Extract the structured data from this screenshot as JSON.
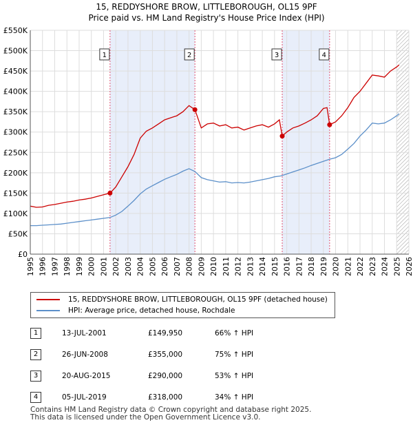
{
  "title_line1": "15, REDDYSHORE BROW, LITTLEBOROUGH, OL15 9PF",
  "title_line2": "Price paid vs. HM Land Registry's House Price Index (HPI)",
  "colors": {
    "property": "#cc0000",
    "hpi": "#5b8fc9",
    "shade": "#e8eefa",
    "grid": "#dddddd"
  },
  "chart_data": {
    "type": "line",
    "xlabel": "",
    "ylabel": "",
    "xlim": [
      1995,
      2026
    ],
    "ylim": [
      0,
      550000
    ],
    "x_ticks": [
      1995,
      1996,
      1997,
      1998,
      1999,
      2000,
      2001,
      2002,
      2003,
      2004,
      2005,
      2006,
      2007,
      2008,
      2009,
      2010,
      2011,
      2012,
      2013,
      2014,
      2015,
      2016,
      2017,
      2018,
      2019,
      2020,
      2021,
      2022,
      2023,
      2024,
      2025,
      2026
    ],
    "y_ticks": [
      {
        "value": 0,
        "label": "£0"
      },
      {
        "value": 50000,
        "label": "£50K"
      },
      {
        "value": 100000,
        "label": "£100K"
      },
      {
        "value": 150000,
        "label": "£150K"
      },
      {
        "value": 200000,
        "label": "£200K"
      },
      {
        "value": 250000,
        "label": "£250K"
      },
      {
        "value": 300000,
        "label": "£300K"
      },
      {
        "value": 350000,
        "label": "£350K"
      },
      {
        "value": 400000,
        "label": "£400K"
      },
      {
        "value": 450000,
        "label": "£450K"
      },
      {
        "value": 500000,
        "label": "£500K"
      },
      {
        "value": 550000,
        "label": "£550K"
      }
    ],
    "shaded_ranges": [
      [
        2001.53,
        2008.48
      ],
      [
        2015.63,
        2019.51
      ]
    ],
    "hatched_from": 2025.0,
    "series": [
      {
        "name": "15, REDDYSHORE BROW, LITTLEBOROUGH, OL15 9PF (detached house)",
        "color": "#cc0000",
        "x": [
          1995.0,
          1995.5,
          1996.0,
          1996.5,
          1997.0,
          1997.5,
          1998.0,
          1998.5,
          1999.0,
          1999.5,
          2000.0,
          2000.5,
          2001.0,
          2001.53,
          2002.0,
          2002.5,
          2003.0,
          2003.5,
          2004.0,
          2004.5,
          2005.0,
          2005.5,
          2006.0,
          2006.5,
          2007.0,
          2007.5,
          2008.0,
          2008.48,
          2009.0,
          2009.5,
          2010.0,
          2010.5,
          2011.0,
          2011.5,
          2012.0,
          2012.5,
          2013.0,
          2013.5,
          2014.0,
          2014.5,
          2015.0,
          2015.4,
          2015.63,
          2016.0,
          2016.5,
          2017.0,
          2017.5,
          2018.0,
          2018.5,
          2019.0,
          2019.3,
          2019.51,
          2020.0,
          2020.5,
          2021.0,
          2021.5,
          2022.0,
          2022.5,
          2023.0,
          2023.5,
          2024.0,
          2024.5,
          2025.0,
          2025.2
        ],
        "y": [
          118000,
          115000,
          116000,
          120000,
          122000,
          125000,
          128000,
          130000,
          133000,
          135000,
          138000,
          142000,
          146000,
          149950,
          165000,
          190000,
          215000,
          245000,
          285000,
          302000,
          310000,
          320000,
          330000,
          335000,
          340000,
          350000,
          365000,
          355000,
          310000,
          320000,
          322000,
          315000,
          318000,
          310000,
          312000,
          305000,
          310000,
          315000,
          318000,
          312000,
          320000,
          330000,
          290000,
          300000,
          310000,
          315000,
          322000,
          330000,
          340000,
          358000,
          360000,
          318000,
          325000,
          340000,
          360000,
          385000,
          400000,
          420000,
          440000,
          438000,
          435000,
          450000,
          460000,
          465000
        ]
      },
      {
        "name": "HPI: Average price, detached house, Rochdale",
        "color": "#5b8fc9",
        "x": [
          1995.0,
          1995.5,
          1996.0,
          1996.5,
          1997.0,
          1997.5,
          1998.0,
          1998.5,
          1999.0,
          1999.5,
          2000.0,
          2000.5,
          2001.0,
          2001.53,
          2002.0,
          2002.5,
          2003.0,
          2003.5,
          2004.0,
          2004.5,
          2005.0,
          2005.5,
          2006.0,
          2006.5,
          2007.0,
          2007.5,
          2008.0,
          2008.48,
          2009.0,
          2009.5,
          2010.0,
          2010.5,
          2011.0,
          2011.5,
          2012.0,
          2012.5,
          2013.0,
          2013.5,
          2014.0,
          2014.5,
          2015.0,
          2015.5,
          2016.0,
          2016.5,
          2017.0,
          2017.5,
          2018.0,
          2018.5,
          2019.0,
          2019.5,
          2020.0,
          2020.5,
          2021.0,
          2021.5,
          2022.0,
          2022.5,
          2023.0,
          2023.5,
          2024.0,
          2024.5,
          2025.0,
          2025.2
        ],
        "y": [
          70000,
          70000,
          71000,
          72000,
          73000,
          74000,
          76000,
          78000,
          80000,
          82000,
          84000,
          86000,
          88000,
          90000,
          96000,
          105000,
          118000,
          132000,
          148000,
          160000,
          168000,
          176000,
          184000,
          190000,
          196000,
          204000,
          210000,
          203000,
          188000,
          183000,
          180000,
          177000,
          178000,
          175000,
          176000,
          175000,
          177000,
          180000,
          183000,
          186000,
          190000,
          192000,
          197000,
          202000,
          207000,
          212000,
          218000,
          223000,
          228000,
          233000,
          237000,
          245000,
          258000,
          272000,
          290000,
          305000,
          322000,
          320000,
          322000,
          330000,
          340000,
          345000
        ]
      }
    ],
    "sales": [
      {
        "label": "1",
        "x": 2001.53,
        "y": 149950
      },
      {
        "label": "2",
        "x": 2008.48,
        "y": 355000
      },
      {
        "label": "3",
        "x": 2015.63,
        "y": 290000
      },
      {
        "label": "4",
        "x": 2019.51,
        "y": 318000
      }
    ]
  },
  "legend": {
    "property_label": "15, REDDYSHORE BROW, LITTLEBOROUGH, OL15 9PF (detached house)",
    "hpi_label": "HPI: Average price, detached house, Rochdale"
  },
  "sales_table": [
    {
      "num": "1",
      "date": "13-JUL-2001",
      "price": "£149,950",
      "hpi": "66% ↑ HPI"
    },
    {
      "num": "2",
      "date": "26-JUN-2008",
      "price": "£355,000",
      "hpi": "75% ↑ HPI"
    },
    {
      "num": "3",
      "date": "20-AUG-2015",
      "price": "£290,000",
      "hpi": "53% ↑ HPI"
    },
    {
      "num": "4",
      "date": "05-JUL-2019",
      "price": "£318,000",
      "hpi": "34% ↑ HPI"
    }
  ],
  "footer": {
    "line1": "Contains HM Land Registry data © Crown copyright and database right 2025.",
    "line2": "This data is licensed under the Open Government Licence v3.0."
  }
}
